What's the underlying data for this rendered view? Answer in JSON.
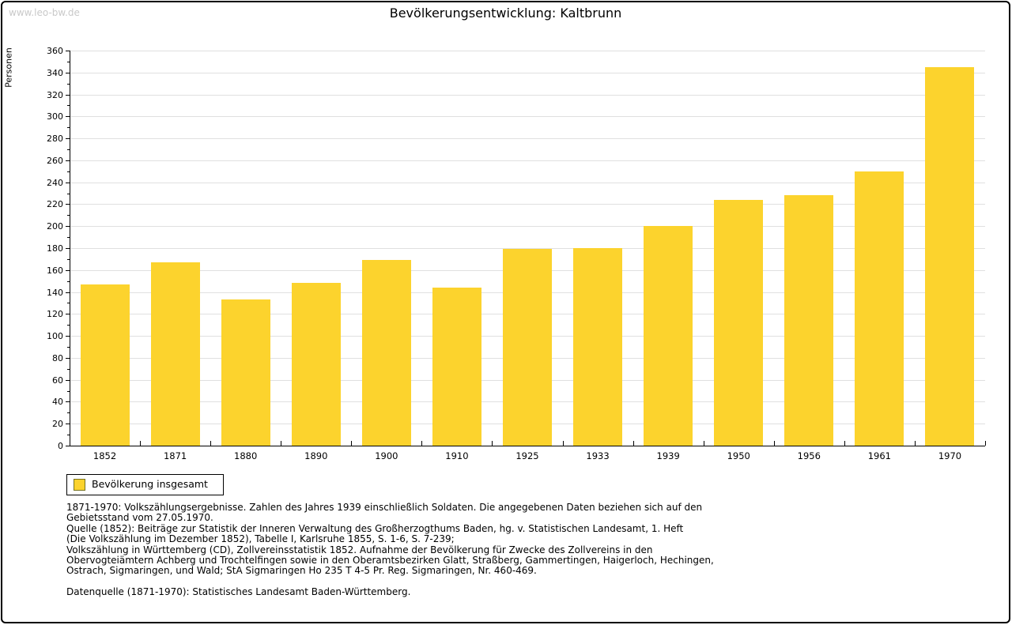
{
  "watermark": "www.leo-bw.de",
  "header": {
    "title": "Bevölkerungsentwicklung: Kaltbrunn"
  },
  "chart_data": {
    "type": "bar",
    "title": "Bevölkerungsentwicklung: Kaltbrunn",
    "xlabel": "",
    "ylabel": "Personen",
    "categories": [
      "1852",
      "1871",
      "1880",
      "1890",
      "1900",
      "1910",
      "1925",
      "1933",
      "1939",
      "1950",
      "1956",
      "1961",
      "1970"
    ],
    "values": [
      147,
      167,
      133,
      148,
      169,
      144,
      179,
      180,
      200,
      224,
      228,
      250,
      345
    ],
    "ylim": [
      0,
      360
    ],
    "ytick_step": 20,
    "yminor_step": 10,
    "grid": true,
    "bar_color": "#fcd32d",
    "legend": {
      "label": "Bevölkerung insgesamt",
      "position": "bottom-left"
    }
  },
  "footnotes": [
    "1871-1970: Volkszählungsergebnisse. Zahlen des Jahres 1939 einschließlich Soldaten. Die angegebenen Daten beziehen sich auf den",
    "Gebietsstand vom 27.05.1970.",
    "Quelle (1852): Beiträge zur Statistik der Inneren Verwaltung des Großherzogthums Baden, hg. v. Statistischen Landesamt, 1. Heft",
    "(Die Volkszählung im Dezember 1852), Tabelle I, Karlsruhe 1855, S. 1-6, S. 7-239;",
    "Volkszählung in Württemberg (CD), Zollvereinsstatistik 1852. Aufnahme der Bevölkerung für Zwecke des Zollvereins in den",
    "Obervogteiämtern Achberg und Trochtelfingen sowie in den Oberamtsbezirken Glatt, Straßberg, Gammertingen, Haigerloch, Hechingen,",
    "Ostrach, Sigmaringen, und Wald; StA Sigmaringen Ho 235 T 4-5 Pr. Reg. Sigmaringen, Nr. 460-469."
  ],
  "datasource": "Datenquelle (1871-1970): Statistisches Landesamt Baden-Württemberg.",
  "colors": {
    "bar": "#fcd32d",
    "grid": "#e0e0e0",
    "watermark": "#c9c9c9",
    "axis": "#000000"
  }
}
